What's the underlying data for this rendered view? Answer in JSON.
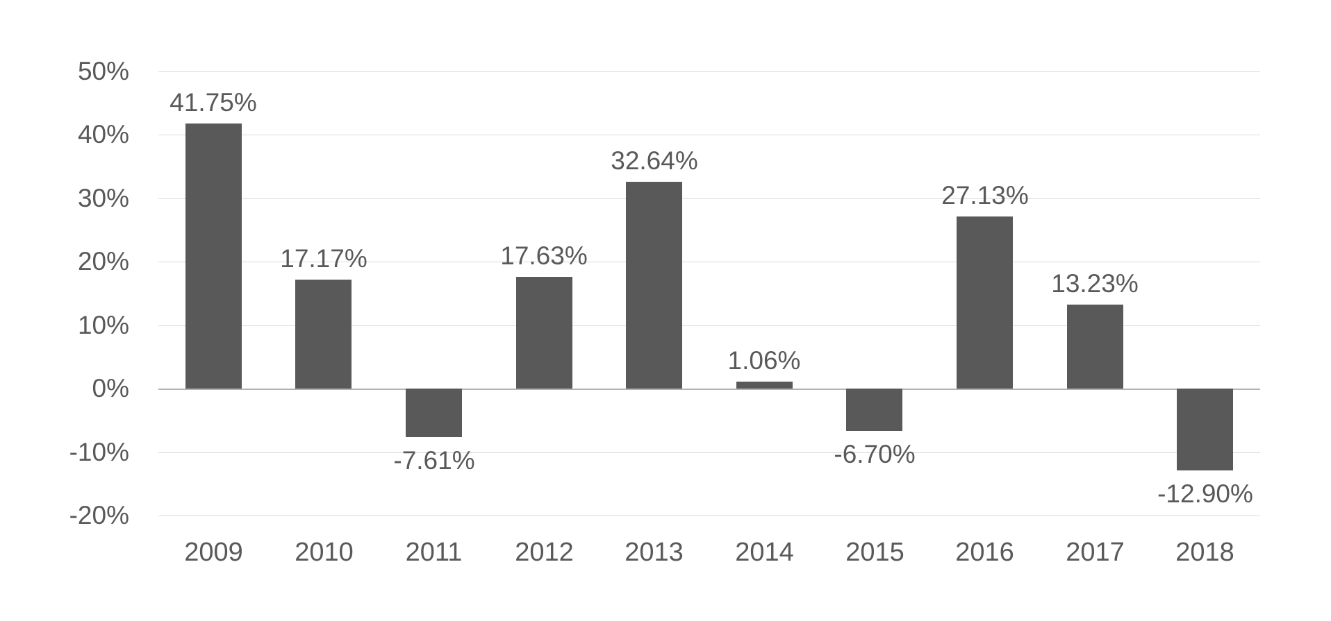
{
  "chart_data": {
    "type": "bar",
    "title": "",
    "xlabel": "",
    "ylabel": "",
    "categories": [
      "2009",
      "2010",
      "2011",
      "2012",
      "2013",
      "2014",
      "2015",
      "2016",
      "2017",
      "2018"
    ],
    "values": [
      41.75,
      17.17,
      -7.61,
      17.63,
      32.64,
      1.06,
      -6.7,
      27.13,
      13.23,
      -12.9
    ],
    "data_labels": [
      "41.75%",
      "17.17%",
      "-7.61%",
      "17.63%",
      "32.64%",
      "1.06%",
      "-6.70%",
      "27.13%",
      "13.23%",
      "-12.90%"
    ],
    "y_ticks": [
      50,
      40,
      30,
      20,
      10,
      0,
      -10,
      -20
    ],
    "y_tick_labels": [
      "50%",
      "40%",
      "30%",
      "20%",
      "10%",
      "0%",
      "-10%",
      "-20%"
    ],
    "ylim": [
      -20,
      50
    ],
    "grid": true,
    "legend": false,
    "colors": {
      "bar": "#595959",
      "text": "#595959",
      "gridline": "#d9d9d9",
      "zero_axis": "#b2b2b2",
      "background": "#ffffff"
    }
  }
}
